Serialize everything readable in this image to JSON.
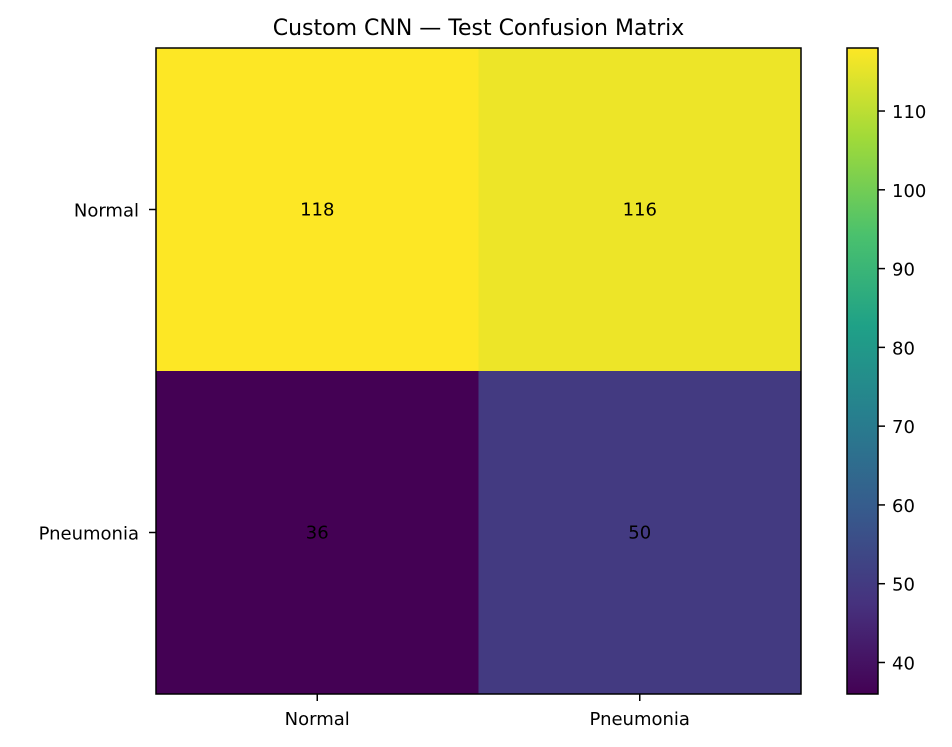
{
  "chart_data": {
    "type": "heatmap",
    "title": "Custom CNN — Test Confusion Matrix",
    "xlabel": "",
    "ylabel": "",
    "x_categories": [
      "Normal",
      "Pneumonia"
    ],
    "y_categories": [
      "Normal",
      "Pneumonia"
    ],
    "values": [
      [
        118,
        116
      ],
      [
        36,
        50
      ]
    ],
    "colormap": "viridis",
    "colorbar": {
      "range": [
        36,
        118
      ],
      "ticks": [
        40,
        50,
        60,
        70,
        80,
        90,
        100,
        110
      ]
    },
    "grid": false
  }
}
